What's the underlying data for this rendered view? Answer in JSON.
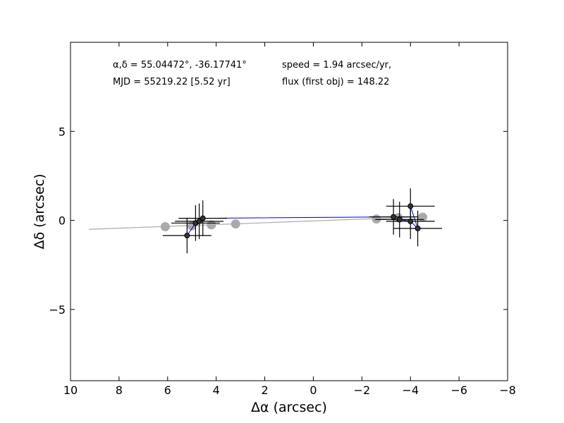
{
  "chart_data": {
    "type": "scatter",
    "title": "",
    "xlabel": "Δα (arcsec)",
    "ylabel": "Δδ (arcsec)",
    "xlim": [
      10,
      -8
    ],
    "ylim": [
      -9,
      10
    ],
    "x_ticks": [
      10,
      8,
      6,
      4,
      2,
      0,
      -2,
      -4,
      -6,
      -8
    ],
    "x_tick_labels": [
      "10",
      "8",
      "6",
      "4",
      "2",
      "0",
      "−2",
      "−4",
      "−6",
      "−8"
    ],
    "y_ticks": [
      5,
      0,
      -5
    ],
    "y_tick_labels": [
      "5",
      "0",
      "−5"
    ],
    "grid": false,
    "annotations": {
      "coords": "α,δ = 55.04472°, -36.17741°",
      "mjd": "MJD = 55219.22 [5.52 yr]",
      "speed": "speed = 1.94 arcsec/yr,",
      "flux": "flux (first obj) = 148.22"
    },
    "colors": {
      "model_line": "#aaaaaa",
      "model_points": "#aaaaaa",
      "obs_line": "#0000cc",
      "obs_points": "#333333",
      "errorbars": "#000000"
    },
    "series": [
      {
        "kind": "model-line",
        "x": [
          9.25,
          -4.5
        ],
        "y": [
          -0.5,
          0.2
        ]
      },
      {
        "kind": "model-points",
        "x": [
          6.1,
          5.0,
          4.2,
          3.2,
          -2.6,
          -3.5,
          -4.5
        ],
        "y": [
          -0.35,
          -0.3,
          -0.25,
          -0.2,
          0.08,
          0.15,
          0.18
        ]
      },
      {
        "kind": "observed",
        "x": [
          5.2,
          4.85,
          4.7,
          4.55,
          -3.3,
          -3.55,
          -4.0,
          -4.3,
          -4.0
        ],
        "y": [
          -0.85,
          -0.15,
          -0.05,
          0.12,
          0.2,
          0.05,
          -0.05,
          -0.45,
          0.8
        ],
        "xerr": [
          1.0,
          1.0,
          1.0,
          1.0,
          1.0,
          1.0,
          1.0,
          1.0,
          1.0
        ],
        "yerr": [
          1.0,
          1.0,
          1.0,
          1.0,
          1.0,
          1.0,
          1.0,
          1.0,
          1.0
        ]
      }
    ]
  }
}
